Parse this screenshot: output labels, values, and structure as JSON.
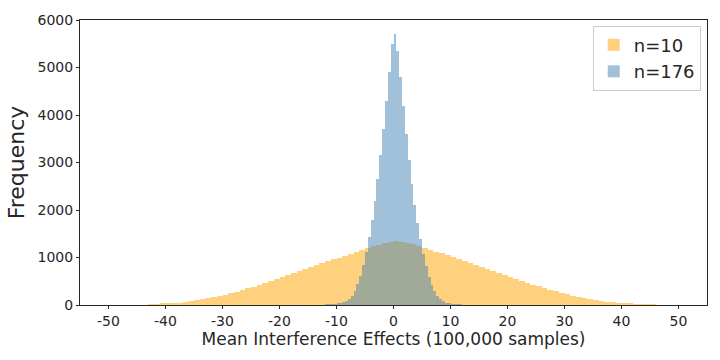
{
  "chart_data": {
    "type": "histogram",
    "x_label": "Mean Interference Effects (100,000 samples)",
    "y_label": "Frequency",
    "xlim": [
      -55,
      55
    ],
    "ylim": [
      0,
      6000
    ],
    "xticks": [
      -50,
      -40,
      -30,
      -20,
      -10,
      0,
      10,
      20,
      30,
      40,
      50
    ],
    "yticks": [
      0,
      1000,
      2000,
      3000,
      4000,
      5000,
      6000
    ],
    "grid": false,
    "legend": "upper right",
    "series": [
      {
        "name": "n=10",
        "color": "#ffa500",
        "bins": [
          -43,
          -42,
          -41,
          -40,
          -39,
          -38,
          -37,
          -36,
          -35,
          -34,
          -33,
          -32,
          -31,
          -30,
          -29,
          -28,
          -27,
          -26,
          -25,
          -24,
          -23,
          -22,
          -21,
          -20,
          -19,
          -18,
          -17,
          -16,
          -15,
          -14,
          -13,
          -12,
          -11,
          -10,
          -9,
          -8,
          -7,
          -6,
          -5,
          -4,
          -3,
          -2,
          -1,
          0,
          1,
          2,
          3,
          4,
          5,
          6,
          7,
          8,
          9,
          10,
          11,
          12,
          13,
          14,
          15,
          16,
          17,
          18,
          19,
          20,
          21,
          22,
          23,
          24,
          25,
          26,
          27,
          28,
          29,
          30,
          31,
          32,
          33,
          34,
          35,
          36,
          37,
          38,
          39,
          40,
          41,
          42,
          43,
          44,
          45,
          46
        ],
        "values": [
          8,
          15,
          22,
          30,
          40,
          52,
          65,
          80,
          98,
          118,
          140,
          165,
          192,
          220,
          250,
          282,
          315,
          350,
          385,
          420,
          458,
          498,
          540,
          580,
          622,
          665,
          708,
          752,
          795,
          838,
          880,
          920,
          960,
          1000,
          1040,
          1080,
          1120,
          1160,
          1200,
          1240,
          1270,
          1300,
          1330,
          1350,
          1335,
          1310,
          1280,
          1245,
          1205,
          1165,
          1125,
          1085,
          1045,
          1005,
          965,
          925,
          885,
          845,
          800,
          758,
          715,
          672,
          630,
          588,
          548,
          506,
          466,
          428,
          392,
          356,
          322,
          290,
          258,
          228,
          200,
          172,
          148,
          125,
          105,
          86,
          70,
          56,
          44,
          34,
          26,
          18,
          12,
          7,
          4
        ]
      },
      {
        "name": "n=176",
        "color": "#4682b4",
        "bins": [
          -12,
          -11.5,
          -11,
          -10.5,
          -10,
          -9.5,
          -9,
          -8.5,
          -8,
          -7.5,
          -7,
          -6.5,
          -6,
          -5.5,
          -5,
          -4.5,
          -4,
          -3.5,
          -3,
          -2.5,
          -2,
          -1.5,
          -1,
          -0.5,
          0,
          0.5,
          1,
          1.5,
          2,
          2.5,
          3,
          3.5,
          4,
          4.5,
          5,
          5.5,
          6,
          6.5,
          7,
          7.5,
          8,
          8.5,
          9,
          9.5,
          10,
          10.5,
          11,
          11.5,
          12
        ],
        "values": [
          3,
          5,
          8,
          14,
          22,
          35,
          55,
          85,
          130,
          200,
          300,
          440,
          620,
          850,
          1120,
          1430,
          1780,
          2180,
          2650,
          3150,
          3700,
          4300,
          4900,
          5500,
          5700,
          5350,
          4800,
          4200,
          3600,
          3050,
          2550,
          2100,
          1720,
          1380,
          1080,
          820,
          600,
          425,
          290,
          195,
          125,
          82,
          52,
          33,
          20,
          12,
          7,
          4
        ]
      }
    ]
  }
}
